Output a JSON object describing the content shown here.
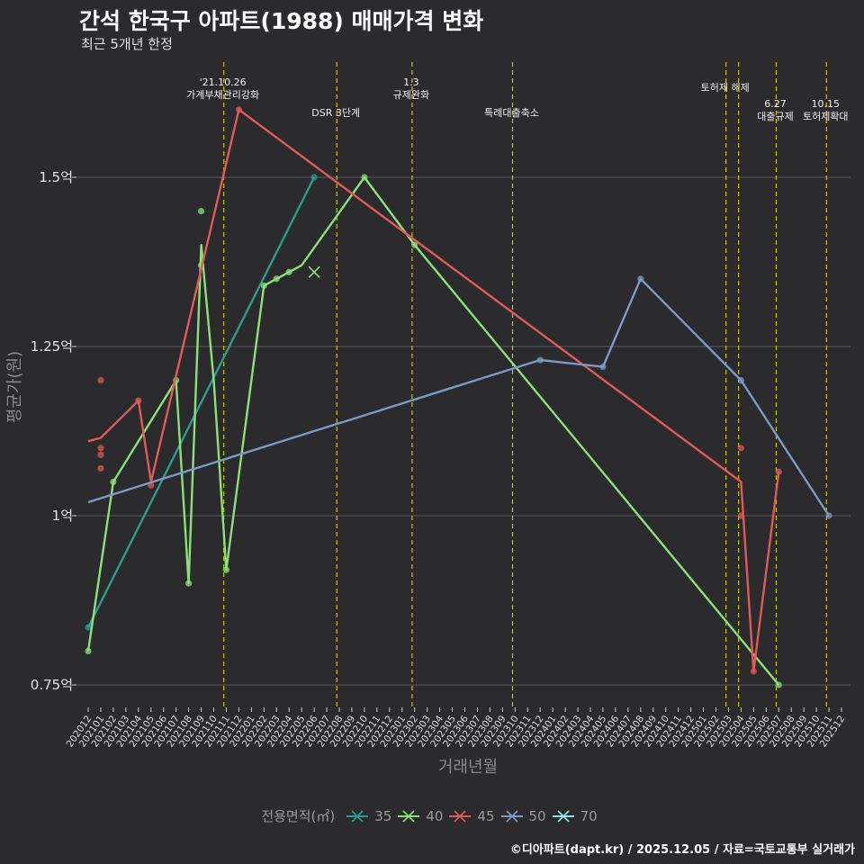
{
  "title": "간석 한국구 아파트(1988) 매매가격 변화",
  "subtitle": "최근 5개년 한정",
  "footer": "©디아파트(dapt.kr) / 2025.12.05 / 자료=국토교통부 실거래가",
  "colors": {
    "bg": "#2b2a2d",
    "grid": "#5a5a5a",
    "event": "#c8c800"
  },
  "chart_data": {
    "type": "line",
    "title": "간석 한국구 아파트(1988) 매매가격 변화",
    "xlabel": "거래년월",
    "ylabel": "평균가(원)",
    "ylim": [
      0.7,
      1.65
    ],
    "yticks": [
      0.75,
      1.0,
      1.25,
      1.5
    ],
    "ytick_labels": [
      "0.75억",
      "1억",
      "1.25억",
      "1.5억"
    ],
    "xlim": [
      "202012",
      "202512"
    ],
    "xticks": [
      "202012",
      "202101",
      "202102",
      "202103",
      "202104",
      "202105",
      "202106",
      "202107",
      "202108",
      "202109",
      "202110",
      "202111",
      "202112",
      "202201",
      "202202",
      "202203",
      "202204",
      "202205",
      "202206",
      "202207",
      "202208",
      "202209",
      "202210",
      "202211",
      "202212",
      "202301",
      "202302",
      "202303",
      "202304",
      "202305",
      "202306",
      "202307",
      "202308",
      "202309",
      "202310",
      "202311",
      "202312",
      "202401",
      "202402",
      "202403",
      "202404",
      "202405",
      "202406",
      "202407",
      "202408",
      "202409",
      "202410",
      "202411",
      "202412",
      "202501",
      "202502",
      "202503",
      "202504",
      "202505",
      "202506",
      "202507",
      "202508",
      "202509",
      "202510",
      "202511",
      "202512"
    ],
    "legend_title": "전용면적(㎡)",
    "events": [
      {
        "date": "202110",
        "label": [
          "'21.10.26",
          "가계부채관리강화"
        ],
        "row": 1
      },
      {
        "date": "202207",
        "label": [
          "DSR 3단계"
        ],
        "row": 2
      },
      {
        "date": "202301",
        "label": [
          "1.3",
          "규제완화"
        ],
        "row": 1
      },
      {
        "date": "202309",
        "label": [
          "특례대출축소"
        ],
        "row": 2
      },
      {
        "date": "202502",
        "label": [
          "토허제 해제"
        ],
        "row": 1
      },
      {
        "date": "202503",
        "label": [],
        "row": 1
      },
      {
        "date": "202506",
        "label": [
          "6.27",
          "대출규제"
        ],
        "row": 2
      },
      {
        "date": "202510",
        "label": [
          "10.15",
          "토허제확대"
        ],
        "row": 2
      }
    ],
    "series": [
      {
        "name": "35",
        "color": "#2a9d8f",
        "line": [
          [
            "202012",
            0.835
          ],
          [
            "202206",
            1.5
          ]
        ],
        "points": [
          [
            "202012",
            0.835
          ],
          [
            "202206",
            1.5
          ]
        ]
      },
      {
        "name": "40",
        "color": "#8ce07a",
        "line": [
          [
            "202012",
            0.8
          ],
          [
            "202102",
            1.05
          ],
          [
            "202107",
            1.2
          ],
          [
            "202108",
            0.9
          ],
          [
            "202109",
            1.4
          ],
          [
            "202110",
            1.2
          ],
          [
            "202111",
            0.92
          ],
          [
            "202202",
            1.34
          ],
          [
            "202203",
            1.35
          ],
          [
            "202204",
            1.36
          ],
          [
            "202205",
            1.37
          ],
          [
            "202210",
            1.5
          ],
          [
            "202302",
            1.4
          ],
          [
            "202507",
            0.75
          ]
        ],
        "points": [
          [
            "202012",
            0.8
          ],
          [
            "202102",
            1.05
          ],
          [
            "202107",
            1.2
          ],
          [
            "202108",
            0.9
          ],
          [
            "202109",
            1.45
          ],
          [
            "202109",
            1.37
          ],
          [
            "202111",
            0.92
          ],
          [
            "202202",
            1.34
          ],
          [
            "202203",
            1.35
          ],
          [
            "202204",
            1.36
          ],
          [
            "202210",
            1.5
          ],
          [
            "202302",
            1.4
          ],
          [
            "202507",
            0.75
          ]
        ],
        "cross": [
          [
            "202205",
            1.36
          ]
        ]
      },
      {
        "name": "45",
        "color": "#e05a5a",
        "line": [
          [
            "202012",
            1.11
          ],
          [
            "202101",
            1.115
          ],
          [
            "202104",
            1.17
          ],
          [
            "202105",
            1.05
          ],
          [
            "202112",
            1.6
          ],
          [
            "202504",
            1.05
          ],
          [
            "202505",
            0.77
          ],
          [
            "202507",
            1.065
          ]
        ],
        "points": [
          [
            "202101",
            1.2
          ],
          [
            "202101",
            1.1
          ],
          [
            "202101",
            1.09
          ],
          [
            "202101",
            1.07
          ],
          [
            "202104",
            1.17
          ],
          [
            "202105",
            1.045
          ],
          [
            "202112",
            1.6
          ],
          [
            "202504",
            1.1
          ],
          [
            "202504",
            1.0
          ],
          [
            "202505",
            0.77
          ],
          [
            "202507",
            1.065
          ]
        ]
      },
      {
        "name": "50",
        "color": "#7b9ac6",
        "line": [
          [
            "202012",
            1.02
          ],
          [
            "202312",
            1.23
          ],
          [
            "202405",
            1.22
          ],
          [
            "202408",
            1.35
          ],
          [
            "202504",
            1.2
          ],
          [
            "202511",
            1.0
          ]
        ],
        "points": [
          [
            "202312",
            1.23
          ],
          [
            "202405",
            1.22
          ],
          [
            "202408",
            1.35
          ],
          [
            "202504",
            1.2
          ],
          [
            "202511",
            1.0
          ]
        ]
      },
      {
        "name": "70",
        "color": "#8ee8e8",
        "line": [],
        "points": []
      }
    ]
  }
}
